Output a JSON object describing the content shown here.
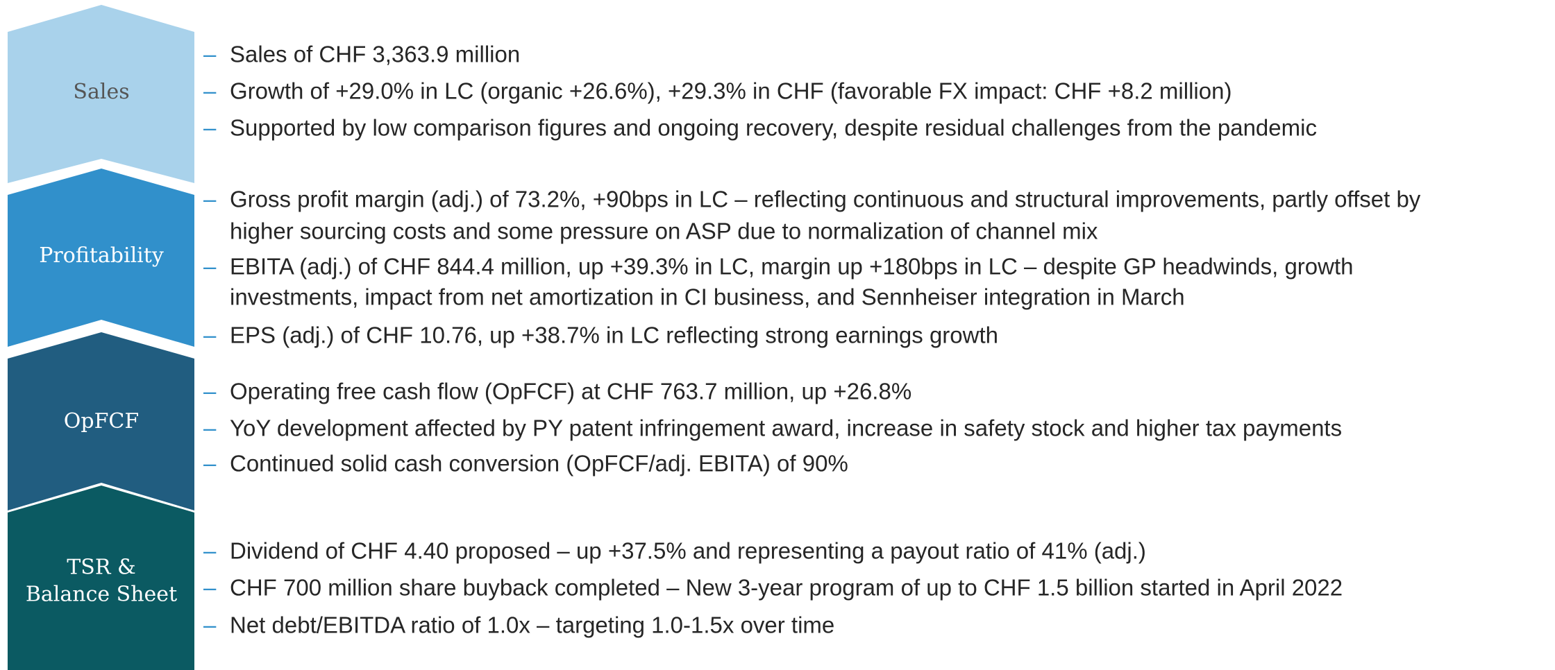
{
  "sections": [
    {
      "label": [
        "Sales"
      ],
      "bullets": [
        [
          "Sales of CHF 3,363.9 million"
        ],
        [
          "Growth of +29.0% in LC (organic +26.6%), +29.3% in CHF (favorable FX impact: CHF +8.2 million)"
        ],
        [
          "Supported by low comparison figures and ongoing recovery, despite residual challenges from the pandemic"
        ]
      ]
    },
    {
      "label": [
        "Profitability"
      ],
      "bullets": [
        [
          "Gross profit margin (adj.) of 73.2%, +90bps in LC – reflecting continuous and structural improvements, partly offset by",
          "higher sourcing costs and some pressure on ASP due to normalization of channel mix"
        ],
        [
          "EBITA (adj.) of CHF 844.4 million, up +39.3% in LC, margin up +180bps in LC – despite GP headwinds, growth",
          "investments, impact from net amortization in CI business, and Sennheiser integration in March"
        ],
        [
          "EPS (adj.) of CHF 10.76, up +38.7% in LC reflecting strong earnings growth"
        ]
      ]
    },
    {
      "label": [
        "OpFCF"
      ],
      "bullets": [
        [
          "Operating free cash flow (OpFCF) at CHF 763.7 million, up +26.8%"
        ],
        [
          "YoY development affected by PY patent infringement award, increase in safety stock and higher tax payments"
        ],
        [
          "Continued solid cash conversion (OpFCF/adj. EBITA) of 90%"
        ]
      ]
    },
    {
      "label": [
        "TSR &",
        "Balance Sheet"
      ],
      "bullets": [
        [
          "Dividend of CHF 4.40 proposed – up +37.5% and representing a payout ratio of 41% (adj.)"
        ],
        [
          "CHF 700 million share buyback completed – New 3-year program of up to CHF 1.5 billion started in April 2022"
        ],
        [
          "Net debt/EBITDA ratio of 1.0x – targeting 1.0-1.5x over time"
        ]
      ]
    }
  ]
}
